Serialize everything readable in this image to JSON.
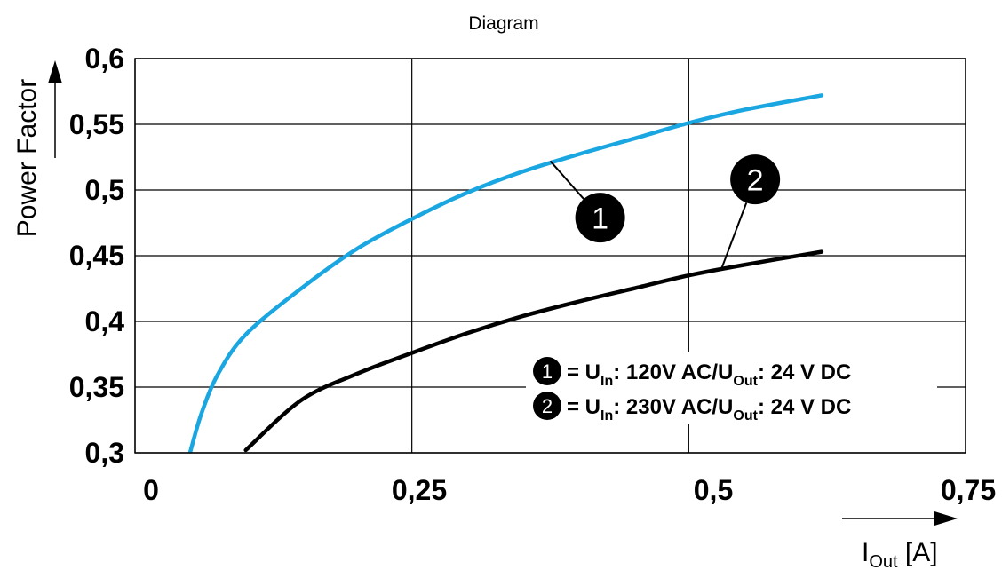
{
  "chart_data": {
    "type": "line",
    "title": "Diagram",
    "xlabel": {
      "main": "I",
      "sub": "Out",
      "unit": " [A]"
    },
    "ylabel": "Power Factor",
    "xlim": [
      0,
      0.75
    ],
    "ylim": [
      0.3,
      0.6
    ],
    "x_ticks": [
      0,
      0.25,
      0.5,
      0.75
    ],
    "x_tick_labels": [
      "0",
      "0,25",
      "0,5",
      "0,75"
    ],
    "y_ticks": [
      0.3,
      0.35,
      0.4,
      0.45,
      0.5,
      0.55,
      0.6
    ],
    "y_tick_labels": [
      "0,3",
      "0,35",
      "0,4",
      "0,45",
      "0,5",
      "0,55",
      "0,6"
    ],
    "grid": true,
    "series": [
      {
        "marker": "1",
        "color": "#1aa6e0",
        "x": [
          0.05,
          0.06,
          0.075,
          0.1,
          0.15,
          0.2,
          0.25,
          0.3,
          0.35,
          0.4,
          0.45,
          0.5,
          0.55,
          0.62
        ],
        "y": [
          0.301,
          0.33,
          0.36,
          0.39,
          0.425,
          0.455,
          0.478,
          0.498,
          0.514,
          0.527,
          0.539,
          0.551,
          0.561,
          0.572
        ]
      },
      {
        "marker": "2",
        "color": "#000000",
        "x": [
          0.1,
          0.15,
          0.2,
          0.25,
          0.3,
          0.35,
          0.4,
          0.45,
          0.5,
          0.55,
          0.62
        ],
        "y": [
          0.302,
          0.34,
          0.36,
          0.376,
          0.391,
          0.404,
          0.415,
          0.425,
          0.435,
          0.443,
          0.453
        ]
      }
    ],
    "legend": {
      "position": "lower-right",
      "entries": [
        {
          "marker": "1",
          "prefix": "= U",
          "sub1": "In",
          "mid": ": 120V AC/U",
          "sub2": "Out",
          "suffix": ": 24 V DC"
        },
        {
          "marker": "2",
          "prefix": "= U",
          "sub1": "In",
          "mid": ": 230V AC/U",
          "sub2": "Out",
          "suffix": ": 24 V DC"
        }
      ]
    },
    "annotations": [
      {
        "marker": "1",
        "point": [
          0.375,
          0.522
        ],
        "label_pos": [
          0.42,
          0.479
        ]
      },
      {
        "marker": "2",
        "point": [
          0.53,
          0.441
        ],
        "label_pos": [
          0.56,
          0.508
        ]
      }
    ]
  }
}
